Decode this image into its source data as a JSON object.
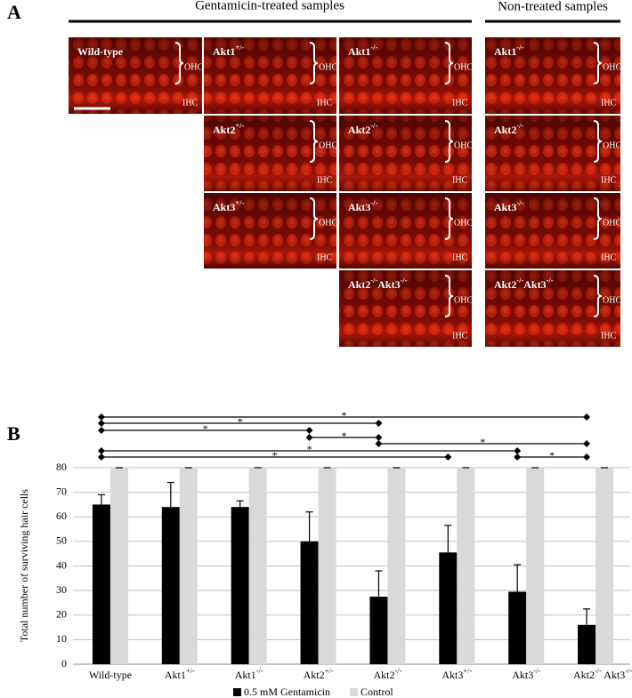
{
  "panel_labels": [
    "A",
    "B"
  ],
  "panel_a": {
    "headers": [
      "Gentamicin-treated samples",
      "Non-treated samples"
    ],
    "ohc": "OHC",
    "ihc": "IHC",
    "tiles": [
      "Wild-type",
      "Akt1+/-",
      "Akt1-/-",
      "Akt1-/-",
      "Akt2+/-",
      "Akt2-/-",
      "Akt2-/-",
      "Akt3+/-",
      "Akt3-/-",
      "Akt3-/-",
      "Akt2-/-Akt3-/-",
      "Akt2-/-Akt3-/-"
    ]
  },
  "chart_data": {
    "type": "bar",
    "y_label": "Total number of surviving hair cells",
    "categories": [
      "Wild-type",
      "Akt1+/-",
      "Akt1-/-",
      "Akt2+/-",
      "Akt2-/-",
      "Akt3+/-",
      "Akt3-/-",
      "Akt2-/- Akt3-/-"
    ],
    "series": [
      {
        "name": "0.5 mM Gentamicin",
        "color": "#000000",
        "values": [
          65,
          64,
          64,
          50,
          27.5,
          45.5,
          29.5,
          16
        ],
        "errors": [
          4,
          10,
          2.5,
          12,
          10.5,
          11,
          11,
          6.5
        ]
      },
      {
        "name": "Control",
        "color": "#d9d9d9",
        "values": [
          80,
          80,
          80,
          80,
          80,
          80,
          80,
          80
        ],
        "errors": [
          0,
          0,
          0,
          0,
          0,
          0,
          0,
          0
        ]
      }
    ],
    "ylim": [
      0,
      80
    ],
    "yticks": [
      0,
      10,
      20,
      30,
      40,
      50,
      60,
      70,
      80
    ],
    "grid": true,
    "significance": [
      "*",
      "*",
      "*",
      "*",
      "*",
      "*",
      "*",
      "*"
    ]
  }
}
